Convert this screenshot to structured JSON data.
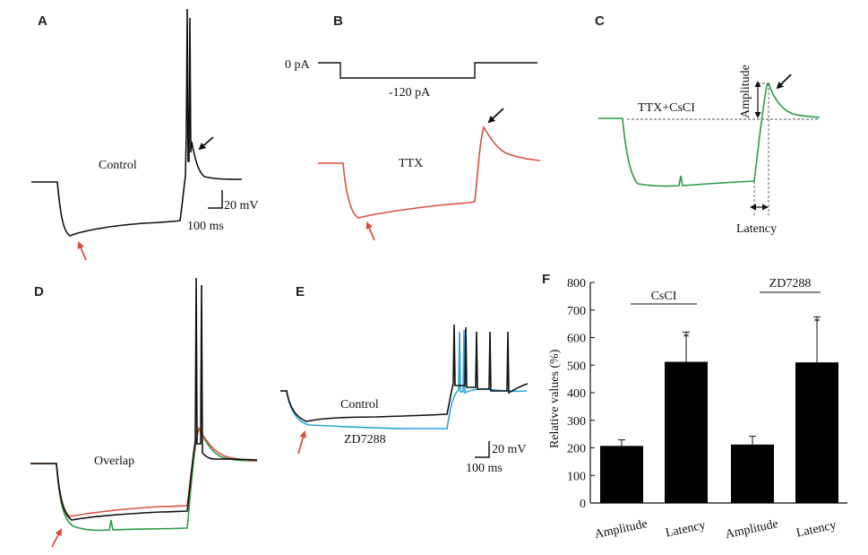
{
  "panels": {
    "A": {
      "label": "A",
      "trace_label": "Control",
      "scale_y": "20 mV",
      "scale_x": "100 ms"
    },
    "B": {
      "label": "B",
      "stim_zero": "0 pA",
      "stim_step": "-120 pA",
      "trace_label": "TTX"
    },
    "C": {
      "label": "C",
      "trace_label": "TTX+CsCI",
      "amplitude_label": "Amplitude",
      "latency_label": "Latency"
    },
    "D": {
      "label": "D",
      "trace_label": "Overlap"
    },
    "E": {
      "label": "E",
      "trace_control": "Control",
      "trace_zd": "ZD7288",
      "scale_y": "20 mV",
      "scale_x": "100 ms"
    },
    "F": {
      "label": "F"
    }
  },
  "colors": {
    "control": "#111111",
    "ttx": "#d9503f",
    "csci": "#2a9a48",
    "zd7288": "#2ba3d8",
    "arrow_red": "#d9503f",
    "arrow_black": "#111111"
  },
  "chart_data": {
    "type": "bar",
    "ylabel": "Relative values (%)",
    "ylim": [
      0,
      800
    ],
    "yticks": [
      "0",
      "100",
      "200",
      "300",
      "400",
      "500",
      "600",
      "700",
      "800"
    ],
    "categories": [
      "Amplitude",
      "Latency",
      "Amplitude",
      "Latency"
    ],
    "values": [
      207,
      512,
      212,
      510
    ],
    "errors": [
      22,
      108,
      30,
      165
    ],
    "significance": [
      "",
      "*",
      "",
      "*"
    ],
    "groups": [
      {
        "name": "CsCI",
        "categories": [
          0,
          1
        ]
      },
      {
        "name": "ZD7288",
        "categories": [
          2,
          3
        ]
      }
    ],
    "bar_color": "#000000",
    "grid": false
  }
}
